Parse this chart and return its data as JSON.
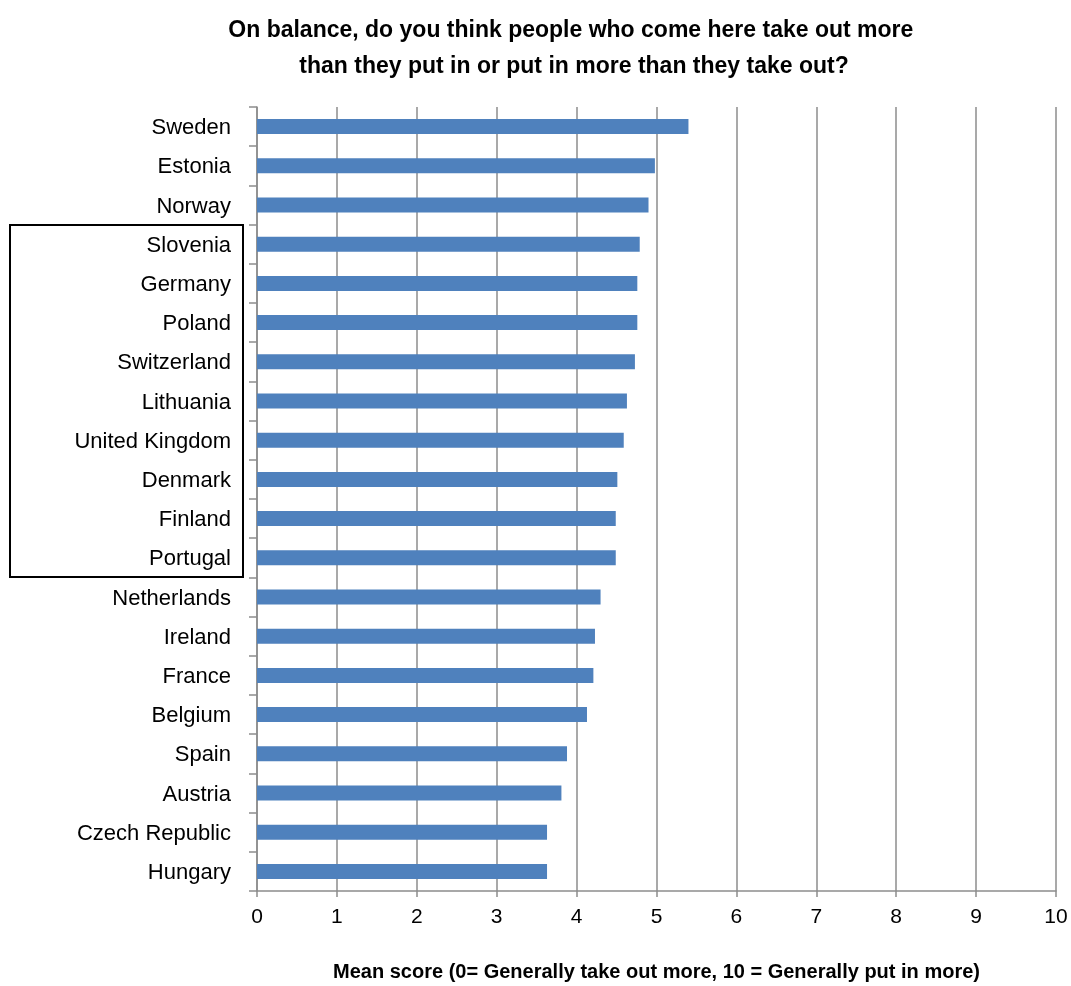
{
  "chart_data": {
    "type": "bar",
    "orientation": "horizontal",
    "title": "On balance, do you think people who come here take out more than they put in or put in more than they take out?",
    "xlabel": "Mean score (0= Generally take out more, 10 = Generally put in more)",
    "categories": [
      "Sweden",
      "Estonia",
      "Norway",
      "Slovenia",
      "Germany",
      "Poland",
      "Switzerland",
      "Lithuania",
      "United Kingdom",
      "Denmark",
      "Finland",
      "Portugal",
      "Netherlands",
      "Ireland",
      "France",
      "Belgium",
      "Spain",
      "Austria",
      "Czech Republic",
      "Hungary"
    ],
    "values": [
      5.4,
      4.98,
      4.9,
      4.79,
      4.76,
      4.76,
      4.73,
      4.63,
      4.59,
      4.51,
      4.49,
      4.49,
      4.3,
      4.23,
      4.21,
      4.13,
      3.88,
      3.81,
      3.63,
      3.63
    ],
    "color": "#4f81bd",
    "xlim": [
      0,
      10
    ],
    "xticks": [
      0,
      1,
      2,
      3,
      4,
      5,
      6,
      7,
      8,
      9,
      10
    ],
    "grid": "x"
  }
}
